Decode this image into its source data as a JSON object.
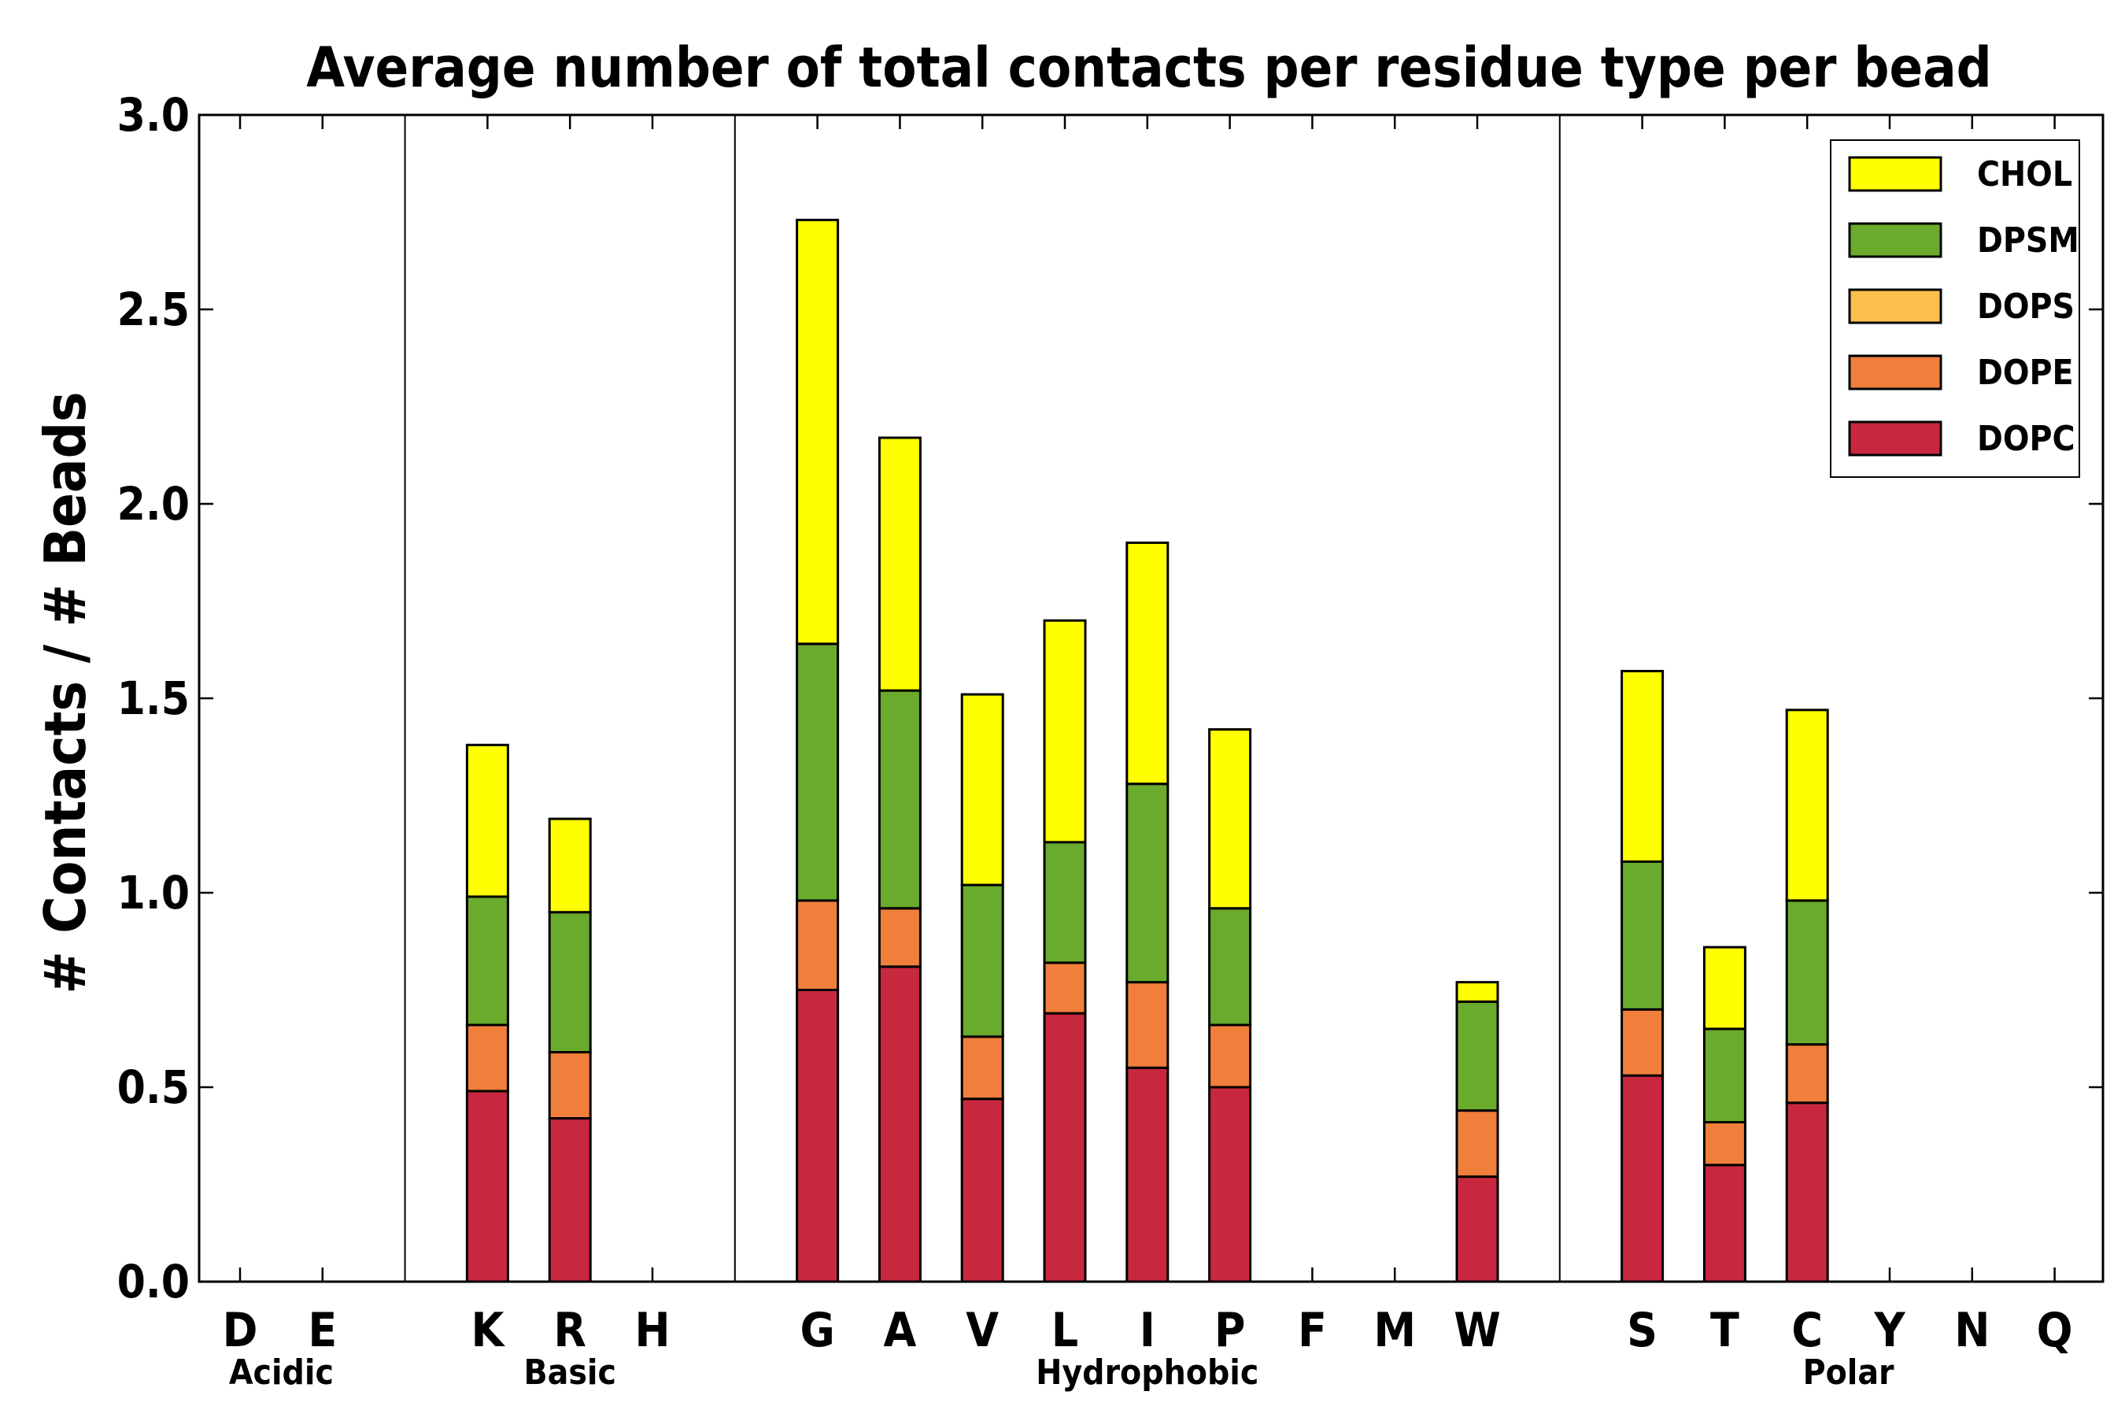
{
  "chart_data": {
    "type": "bar",
    "stacked": true,
    "title": "Average number of total contacts per residue type per bead",
    "xlabel": "",
    "ylabel": "# Contacts / # Beads",
    "ylim": [
      0,
      3.0
    ],
    "yticks": [
      "0.0",
      "0.5",
      "1.0",
      "1.5",
      "2.0",
      "2.5",
      "3.0"
    ],
    "categories": [
      "D",
      "E",
      "K",
      "R",
      "H",
      "G",
      "A",
      "V",
      "L",
      "I",
      "P",
      "F",
      "M",
      "W",
      "S",
      "T",
      "C",
      "Y",
      "N",
      "Q"
    ],
    "groups": [
      {
        "name": "Acidic",
        "members": [
          "D",
          "E"
        ]
      },
      {
        "name": "Basic",
        "members": [
          "K",
          "R",
          "H"
        ]
      },
      {
        "name": "Hydrophobic",
        "members": [
          "G",
          "A",
          "V",
          "L",
          "I",
          "P",
          "F",
          "M",
          "W"
        ]
      },
      {
        "name": "Polar",
        "members": [
          "S",
          "T",
          "C",
          "Y",
          "N",
          "Q"
        ]
      }
    ],
    "series": [
      {
        "name": "DOPC",
        "color": "#c8283f",
        "values": [
          0,
          0,
          0.49,
          0.42,
          0,
          0.75,
          0.81,
          0.47,
          0.69,
          0.55,
          0.5,
          0,
          0,
          0.27,
          0.53,
          0.3,
          0.46,
          0,
          0,
          0
        ]
      },
      {
        "name": "DOPE",
        "color": "#f07f3c",
        "values": [
          0,
          0,
          0.17,
          0.17,
          0,
          0.23,
          0.15,
          0.16,
          0.13,
          0.22,
          0.16,
          0,
          0,
          0.17,
          0.17,
          0.11,
          0.15,
          0,
          0,
          0
        ]
      },
      {
        "name": "DOPS",
        "color": "#fbc04b",
        "values": [
          0,
          0,
          0,
          0,
          0,
          0,
          0,
          0,
          0,
          0,
          0,
          0,
          0,
          0,
          0,
          0,
          0,
          0,
          0,
          0
        ]
      },
      {
        "name": "DPSM",
        "color": "#6aab2d",
        "values": [
          0,
          0,
          0.33,
          0.36,
          0,
          0.66,
          0.56,
          0.39,
          0.31,
          0.51,
          0.3,
          0,
          0,
          0.28,
          0.38,
          0.24,
          0.37,
          0,
          0,
          0
        ]
      },
      {
        "name": "CHOL",
        "color": "#ffff00",
        "values": [
          0,
          0,
          0.39,
          0.24,
          0,
          1.09,
          0.65,
          0.49,
          0.57,
          0.62,
          0.46,
          0,
          0,
          0.05,
          0.49,
          0.21,
          0.49,
          0,
          0,
          0
        ]
      }
    ],
    "legend": {
      "placement": "top-right",
      "entries": [
        "CHOL",
        "DPSM",
        "DOPS",
        "DOPE",
        "DOPC"
      ]
    },
    "grid": false
  }
}
